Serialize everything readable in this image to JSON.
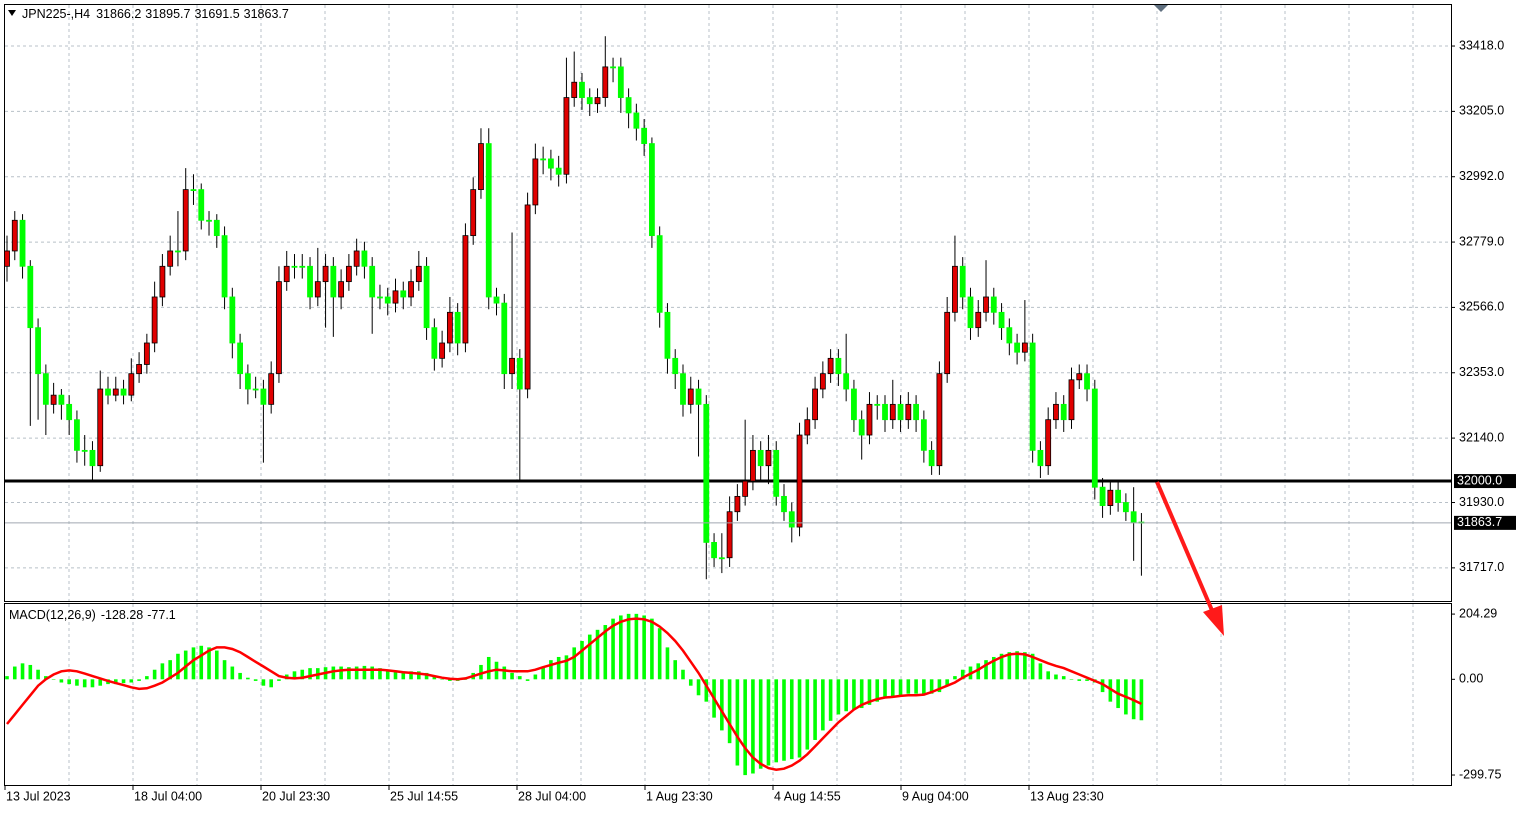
{
  "chart_data": [
    {
      "type": "candlestick",
      "title": "JPN225-,H4",
      "candles": [
        [
          32700,
          32800,
          32650,
          32750
        ],
        [
          32750,
          32880,
          32720,
          32850
        ],
        [
          32850,
          32870,
          32660,
          32700
        ],
        [
          32700,
          32720,
          32180,
          32500
        ],
        [
          32500,
          32530,
          32200,
          32350
        ],
        [
          32350,
          32380,
          32150,
          32250
        ],
        [
          32250,
          32320,
          32220,
          32280
        ],
        [
          32280,
          32300,
          32200,
          32250
        ],
        [
          32250,
          32280,
          32150,
          32200
        ],
        [
          32200,
          32230,
          32060,
          32100
        ],
        [
          32100,
          32150,
          32050,
          32100
        ],
        [
          32100,
          32130,
          32000,
          32050
        ],
        [
          32050,
          32360,
          32030,
          32300
        ],
        [
          32300,
          32340,
          32250,
          32280
        ],
        [
          32280,
          32340,
          32260,
          32300
        ],
        [
          32300,
          32330,
          32250,
          32280
        ],
        [
          32280,
          32400,
          32260,
          32350
        ],
        [
          32350,
          32420,
          32320,
          32380
        ],
        [
          32380,
          32480,
          32350,
          32450
        ],
        [
          32450,
          32650,
          32420,
          32600
        ],
        [
          32600,
          32740,
          32570,
          32700
        ],
        [
          32700,
          32800,
          32670,
          32750
        ],
        [
          32750,
          32880,
          32700,
          32750
        ],
        [
          32750,
          33020,
          32720,
          32950
        ],
        [
          32950,
          33000,
          32900,
          32950
        ],
        [
          32950,
          32970,
          32820,
          32850
        ],
        [
          32850,
          32880,
          32800,
          32850
        ],
        [
          32850,
          32870,
          32760,
          32800
        ],
        [
          32800,
          32830,
          32560,
          32600
        ],
        [
          32600,
          32630,
          32400,
          32450
        ],
        [
          32450,
          32480,
          32300,
          32350
        ],
        [
          32350,
          32380,
          32250,
          32300
        ],
        [
          32300,
          32340,
          32270,
          32300
        ],
        [
          32300,
          32330,
          32060,
          32250
        ],
        [
          32250,
          32390,
          32220,
          32350
        ],
        [
          32350,
          32700,
          32320,
          32650
        ],
        [
          32650,
          32750,
          32620,
          32700
        ],
        [
          32700,
          32740,
          32660,
          32700
        ],
        [
          32700,
          32740,
          32660,
          32700
        ],
        [
          32700,
          32730,
          32560,
          32600
        ],
        [
          32600,
          32760,
          32570,
          32650
        ],
        [
          32650,
          32740,
          32500,
          32700
        ],
        [
          32700,
          32730,
          32470,
          32600
        ],
        [
          32600,
          32690,
          32560,
          32650
        ],
        [
          32650,
          32740,
          32620,
          32700
        ],
        [
          32700,
          32790,
          32670,
          32750
        ],
        [
          32750,
          32780,
          32660,
          32700
        ],
        [
          32700,
          32730,
          32480,
          32600
        ],
        [
          32600,
          32640,
          32560,
          32600
        ],
        [
          32600,
          32630,
          32540,
          32580
        ],
        [
          32580,
          32660,
          32550,
          32620
        ],
        [
          32620,
          32650,
          32560,
          32600
        ],
        [
          32600,
          32690,
          32570,
          32650
        ],
        [
          32650,
          32750,
          32620,
          32700
        ],
        [
          32700,
          32730,
          32460,
          32500
        ],
        [
          32500,
          32530,
          32360,
          32400
        ],
        [
          32400,
          32490,
          32370,
          32450
        ],
        [
          32450,
          32600,
          32420,
          32550
        ],
        [
          32550,
          32580,
          32410,
          32450
        ],
        [
          32450,
          32840,
          32420,
          32800
        ],
        [
          32800,
          32990,
          32770,
          32950
        ],
        [
          32950,
          33150,
          32920,
          33100
        ],
        [
          33100,
          33150,
          32560,
          32600
        ],
        [
          32600,
          32630,
          32540,
          32580
        ],
        [
          32580,
          32610,
          32300,
          32350
        ],
        [
          32350,
          32810,
          32300,
          32400
        ],
        [
          32400,
          32430,
          32000,
          32300
        ],
        [
          32300,
          32940,
          32270,
          32900
        ],
        [
          32900,
          33100,
          32870,
          33050
        ],
        [
          33050,
          33090,
          33000,
          33050
        ],
        [
          33050,
          33080,
          32980,
          33020
        ],
        [
          33020,
          33060,
          32960,
          33000
        ],
        [
          33000,
          33380,
          32970,
          33250
        ],
        [
          33250,
          33400,
          33220,
          33300
        ],
        [
          33300,
          33330,
          33210,
          33250
        ],
        [
          33250,
          33280,
          33190,
          33230
        ],
        [
          33230,
          33280,
          33200,
          33250
        ],
        [
          33250,
          33450,
          33220,
          33350
        ],
        [
          33350,
          33380,
          33300,
          33350
        ],
        [
          33350,
          33380,
          33200,
          33250
        ],
        [
          33250,
          33280,
          33150,
          33200
        ],
        [
          33200,
          33230,
          33110,
          33150
        ],
        [
          33150,
          33180,
          33060,
          33100
        ],
        [
          33100,
          33120,
          32760,
          32800
        ],
        [
          32800,
          32830,
          32500,
          32550
        ],
        [
          32550,
          32580,
          32350,
          32400
        ],
        [
          32400,
          32430,
          32300,
          32350
        ],
        [
          32350,
          32380,
          32210,
          32250
        ],
        [
          32250,
          32340,
          32220,
          32300
        ],
        [
          32300,
          32330,
          32080,
          32250
        ],
        [
          32250,
          32280,
          31680,
          31800
        ],
        [
          31800,
          31830,
          31720,
          31750
        ],
        [
          31750,
          31830,
          31700,
          31750
        ],
        [
          31750,
          31950,
          31720,
          31900
        ],
        [
          31900,
          31990,
          31870,
          31950
        ],
        [
          31950,
          32200,
          31920,
          32000
        ],
        [
          32000,
          32150,
          31970,
          32100
        ],
        [
          32100,
          32130,
          32000,
          32050
        ],
        [
          32050,
          32150,
          31990,
          32100
        ],
        [
          32100,
          32130,
          31920,
          31950
        ],
        [
          31950,
          31990,
          31870,
          31900
        ],
        [
          31900,
          31930,
          31800,
          31850
        ],
        [
          31850,
          32190,
          31820,
          32150
        ],
        [
          32150,
          32240,
          32120,
          32200
        ],
        [
          32200,
          32340,
          32170,
          32300
        ],
        [
          32300,
          32390,
          32270,
          32350
        ],
        [
          32350,
          32430,
          32320,
          32400
        ],
        [
          32400,
          32430,
          32310,
          32350
        ],
        [
          32350,
          32480,
          32260,
          32300
        ],
        [
          32300,
          32330,
          32160,
          32200
        ],
        [
          32200,
          32230,
          32070,
          32150
        ],
        [
          32150,
          32290,
          32120,
          32250
        ],
        [
          32250,
          32280,
          32200,
          32250
        ],
        [
          32250,
          32280,
          32160,
          32200
        ],
        [
          32200,
          32330,
          32170,
          32250
        ],
        [
          32250,
          32280,
          32160,
          32200
        ],
        [
          32200,
          32290,
          32170,
          32250
        ],
        [
          32250,
          32280,
          32160,
          32200
        ],
        [
          32200,
          32230,
          32060,
          32100
        ],
        [
          32100,
          32130,
          32020,
          32050
        ],
        [
          32050,
          32390,
          32020,
          32350
        ],
        [
          32350,
          32600,
          32320,
          32550
        ],
        [
          32550,
          32800,
          32520,
          32700
        ],
        [
          32700,
          32730,
          32560,
          32600
        ],
        [
          32600,
          32630,
          32460,
          32500
        ],
        [
          32500,
          32590,
          32470,
          32550
        ],
        [
          32550,
          32720,
          32520,
          32600
        ],
        [
          32600,
          32630,
          32510,
          32550
        ],
        [
          32550,
          32580,
          32460,
          32500
        ],
        [
          32500,
          32530,
          32410,
          32450
        ],
        [
          32450,
          32480,
          32380,
          32420
        ],
        [
          32420,
          32590,
          32390,
          32450
        ],
        [
          32450,
          32480,
          32060,
          32100
        ],
        [
          32100,
          32130,
          32010,
          32050
        ],
        [
          32050,
          32240,
          32020,
          32200
        ],
        [
          32200,
          32290,
          32170,
          32250
        ],
        [
          32250,
          32280,
          32160,
          32200
        ],
        [
          32200,
          32370,
          32170,
          32330
        ],
        [
          32330,
          32380,
          32300,
          32350
        ],
        [
          32350,
          32380,
          32260,
          32300
        ],
        [
          32300,
          32330,
          31940,
          31980
        ],
        [
          31980,
          32010,
          31880,
          31920
        ],
        [
          31920,
          32000,
          31890,
          31970
        ],
        [
          31970,
          32000,
          31900,
          31930
        ],
        [
          31930,
          31960,
          31870,
          31900
        ],
        [
          31900,
          31980,
          31740,
          31866.2
        ],
        [
          31866.2,
          31895.7,
          31691.5,
          31863.7
        ]
      ],
      "bull_color": "#e00000",
      "bear_color": "#00ff00",
      "ylim": [
        31609,
        33555
      ],
      "yticks": [
        {
          "value": 33418,
          "label": "33418.0"
        },
        {
          "value": 33205,
          "label": "33205.0"
        },
        {
          "value": 32992,
          "label": "32992.0"
        },
        {
          "value": 32779,
          "label": "32779.0"
        },
        {
          "value": 32566,
          "label": "32566.0"
        },
        {
          "value": 32353,
          "label": "32353.0"
        },
        {
          "value": 32140,
          "label": "32140.0"
        },
        {
          "value": 31930,
          "label": "31930.0"
        },
        {
          "value": 31717,
          "label": "31717.0"
        }
      ],
      "hline": {
        "value": 32000,
        "label": "32000.0"
      },
      "x_labels": [
        "13 Jul 2023",
        "18 Jul 04:00",
        "20 Jul 23:30",
        "25 Jul 14:55",
        "28 Jul 04:00",
        "1 Aug 23:30",
        "4 Aug 14:55",
        "9 Aug 04:00",
        "13 Aug 23:30"
      ],
      "grid": true
    },
    {
      "type": "macd",
      "title": "MACD(12,26,9)",
      "histogram": {
        "color": "#00ff00",
        "values": [
          10,
          40,
          50,
          45,
          30,
          10,
          0,
          -10,
          -15,
          -20,
          -25,
          -25,
          -20,
          -15,
          -15,
          -12,
          -10,
          -5,
          10,
          30,
          50,
          60,
          80,
          90,
          100,
          105,
          100,
          90,
          60,
          40,
          20,
          5,
          -5,
          -20,
          -25,
          -5,
          15,
          25,
          30,
          35,
          35,
          38,
          40,
          40,
          38,
          40,
          42,
          40,
          35,
          30,
          28,
          25,
          25,
          25,
          20,
          10,
          0,
          -5,
          -5,
          0,
          20,
          45,
          70,
          55,
          40,
          20,
          10,
          -5,
          15,
          40,
          60,
          70,
          75,
          100,
          120,
          140,
          155,
          170,
          190,
          200,
          205,
          205,
          200,
          190,
          160,
          100,
          60,
          30,
          -20,
          -50,
          -70,
          -120,
          -160,
          -200,
          -270,
          -300,
          -295,
          -280,
          -270,
          -260,
          -255,
          -250,
          -245,
          -220,
          -190,
          -160,
          -130,
          -110,
          -100,
          -95,
          -90,
          -80,
          -70,
          -60,
          -55,
          -50,
          -45,
          -45,
          -45,
          -45,
          -40,
          -20,
          10,
          30,
          40,
          50,
          60,
          70,
          80,
          85,
          88,
          85,
          80,
          50,
          25,
          15,
          10,
          0,
          -5,
          -5,
          -10,
          -40,
          -70,
          -90,
          -110,
          -125,
          -128.28
        ]
      },
      "signal": {
        "color": "#ff0000",
        "values": [
          -140,
          -110,
          -80,
          -50,
          -20,
          0,
          15,
          25,
          28,
          25,
          18,
          10,
          3,
          -5,
          -12,
          -18,
          -25,
          -30,
          -28,
          -20,
          -10,
          5,
          20,
          40,
          60,
          75,
          90,
          100,
          100,
          95,
          85,
          70,
          55,
          40,
          25,
          10,
          5,
          3,
          5,
          10,
          15,
          20,
          25,
          28,
          30,
          30,
          30,
          30,
          30,
          28,
          25,
          22,
          20,
          18,
          15,
          10,
          5,
          2,
          0,
          3,
          10,
          18,
          25,
          30,
          28,
          25,
          25,
          25,
          30,
          38,
          45,
          52,
          58,
          70,
          90,
          110,
          130,
          150,
          168,
          180,
          188,
          190,
          188,
          180,
          165,
          145,
          120,
          90,
          55,
          20,
          -20,
          -60,
          -100,
          -140,
          -180,
          -215,
          -245,
          -265,
          -278,
          -283,
          -280,
          -270,
          -255,
          -235,
          -210,
          -185,
          -160,
          -135,
          -115,
          -95,
          -80,
          -70,
          -62,
          -57,
          -55,
          -52,
          -50,
          -50,
          -48,
          -40,
          -30,
          -20,
          -10,
          5,
          18,
          30,
          45,
          58,
          70,
          78,
          80,
          78,
          70,
          60,
          50,
          42,
          35,
          25,
          15,
          5,
          -5,
          -15,
          -30,
          -45,
          -55,
          -65,
          -77.1
        ]
      },
      "ylim": [
        -331,
        239
      ],
      "yticks": [
        204.29,
        {
          "value": 0,
          "label": "0.00"
        },
        -299.75
      ]
    }
  ]
}
